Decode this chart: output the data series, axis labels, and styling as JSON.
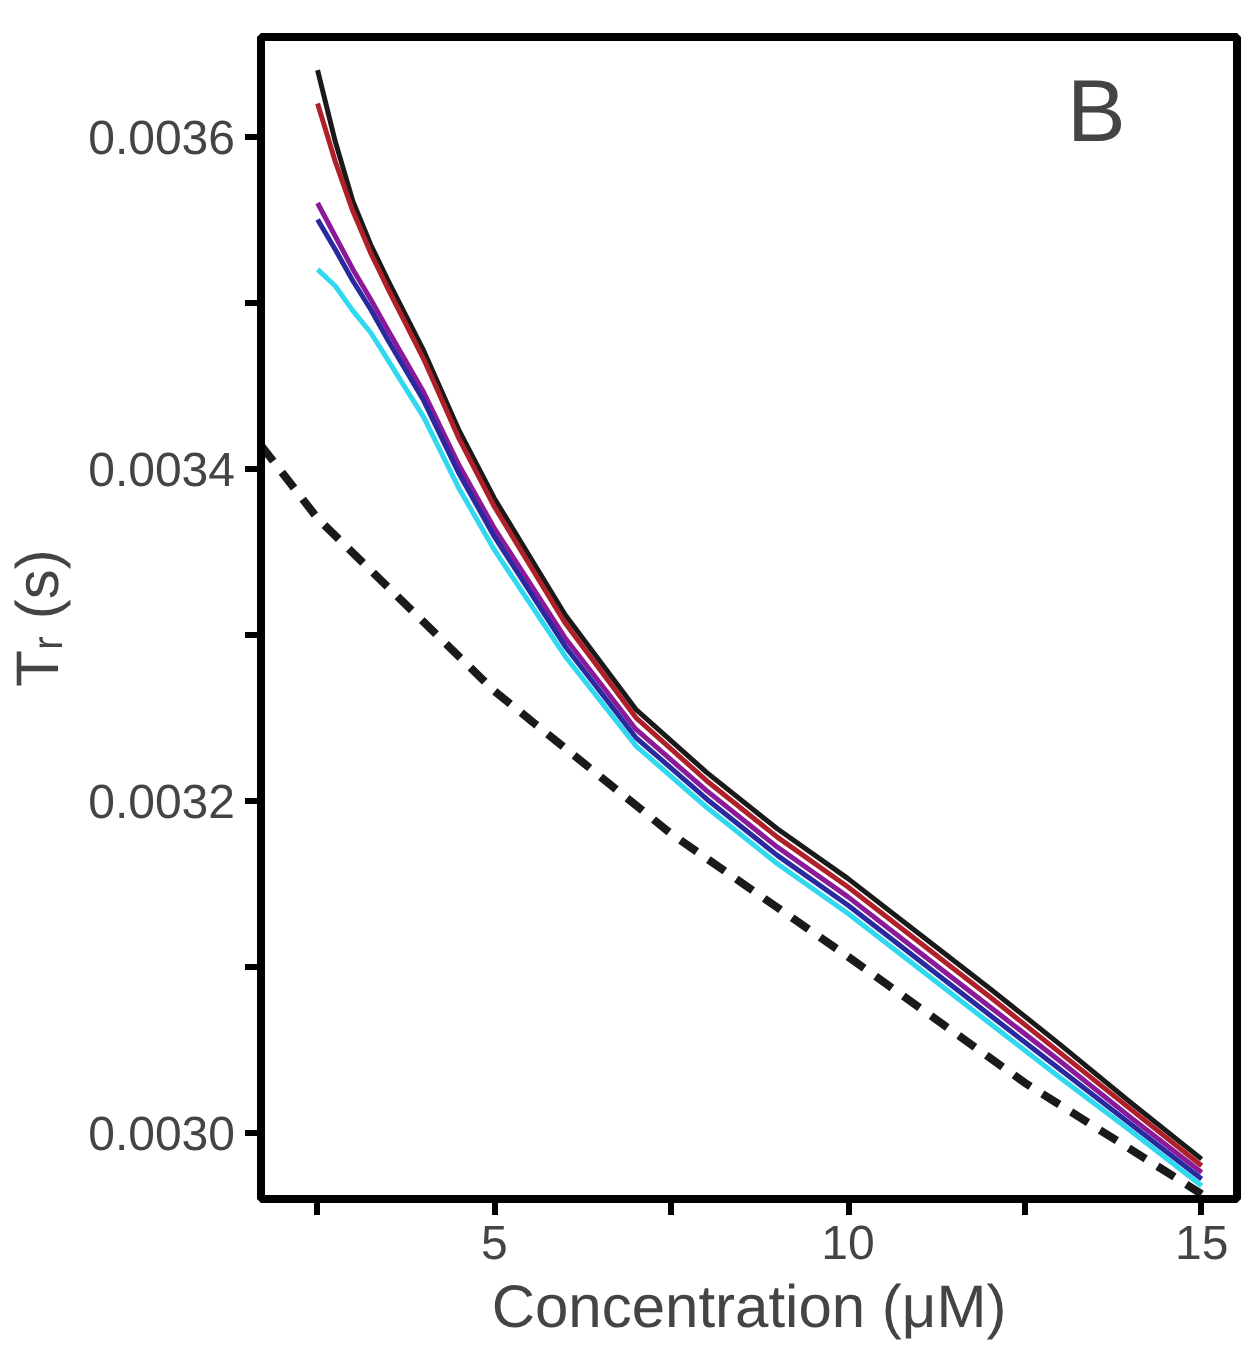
{
  "chart_data": {
    "type": "line",
    "xlabel": "Concentration (μM)",
    "ylabel": "Tᵣ (s)",
    "annotations": [
      "B"
    ],
    "x": [
      2.5,
      2.75,
      3,
      3.25,
      3.5,
      4,
      4.5,
      5,
      6,
      7,
      8,
      9,
      10,
      11,
      12,
      13,
      14,
      15
    ],
    "xlim": [
      1.7,
      15.5
    ],
    "ylim": [
      0.00296,
      0.00366
    ],
    "xticks": [
      {
        "value": 2.5,
        "label": null
      },
      5,
      {
        "value": 7.5,
        "label": null
      },
      10,
      {
        "value": 12.5,
        "label": null
      },
      15
    ],
    "yticks": [
      {
        "value": 0.003,
        "label": "0.0030"
      },
      {
        "value": 0.0031,
        "label": null
      },
      0.0032,
      {
        "value": 0.0033,
        "label": null
      },
      0.0034,
      {
        "value": 0.0035,
        "label": null
      },
      0.0036
    ],
    "grid": false,
    "marker": "none",
    "series": [
      {
        "color": "#1a1a1a",
        "values": [
          0.00364,
          0.003597,
          0.003561,
          0.003535,
          0.003513,
          0.003471,
          0.003423,
          0.003382,
          0.003312,
          0.003255,
          0.003217,
          0.003183,
          0.003153,
          0.00312,
          0.003087,
          0.003053,
          0.003018,
          0.002984
        ]
      },
      {
        "color": "#b0202a",
        "values": [
          0.00362,
          0.003585,
          0.003555,
          0.00353,
          0.003508,
          0.003466,
          0.003418,
          0.003377,
          0.003307,
          0.00325,
          0.003212,
          0.003178,
          0.003148,
          0.003115,
          0.003082,
          0.003048,
          0.003014,
          0.00298
        ]
      },
      {
        "color": "#8a1a9a",
        "values": [
          0.00356,
          0.00354,
          0.00352,
          0.003502,
          0.003483,
          0.003446,
          0.003402,
          0.003364,
          0.003298,
          0.003243,
          0.003206,
          0.003172,
          0.003142,
          0.003109,
          0.003076,
          0.003043,
          0.003009,
          0.002976
        ]
      },
      {
        "color": "#2a2aa0",
        "values": [
          0.00355,
          0.003532,
          0.003513,
          0.003496,
          0.003477,
          0.003441,
          0.003397,
          0.003359,
          0.003293,
          0.003238,
          0.003201,
          0.003167,
          0.003137,
          0.003104,
          0.003071,
          0.003038,
          0.003005,
          0.002972
        ]
      },
      {
        "color": "#30d8f0",
        "values": [
          0.00352,
          0.00351,
          0.003495,
          0.003482,
          0.003465,
          0.003431,
          0.003388,
          0.003351,
          0.003287,
          0.003233,
          0.003196,
          0.003162,
          0.003132,
          0.003099,
          0.003066,
          0.003033,
          0.003001,
          0.002968
        ]
      },
      {
        "color": "#1a1a1a",
        "line_style": "dashed",
        "x": [
          1.7,
          2.5,
          5,
          7.5,
          10,
          12.5,
          15
        ],
        "values": [
          0.003414,
          0.00337,
          0.003266,
          0.00318,
          0.003106,
          0.00303,
          0.002963
        ]
      }
    ]
  }
}
